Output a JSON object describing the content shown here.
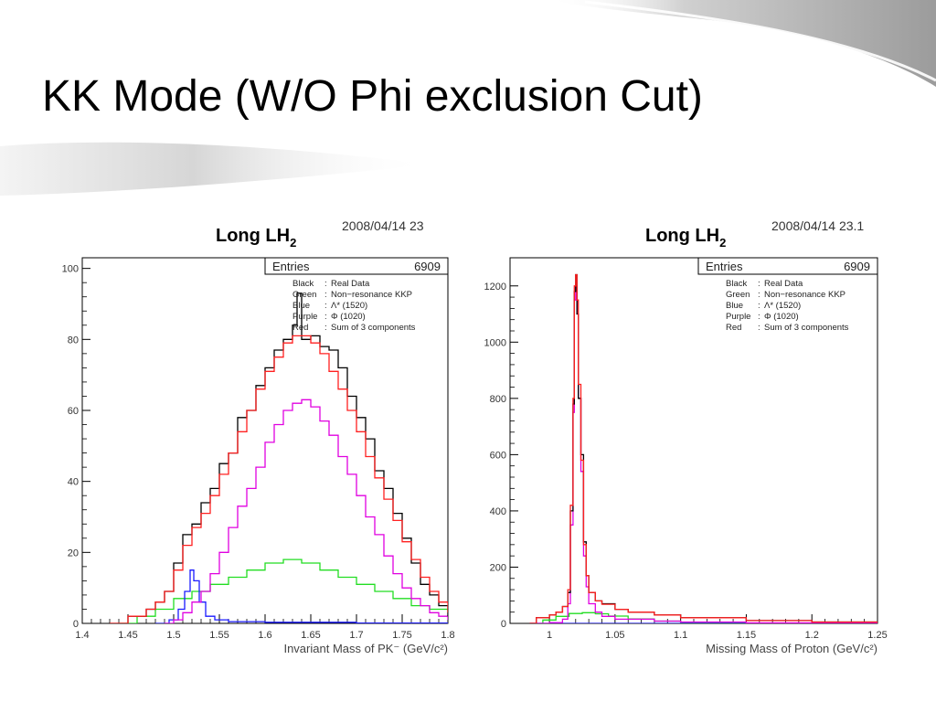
{
  "slide": {
    "title": "KK Mode (W/O Phi exclusion Cut)"
  },
  "legend": {
    "entries_label": "Entries",
    "items": [
      {
        "color_name": "Black",
        "desc": "Real Data",
        "color": "#000000"
      },
      {
        "color_name": "Green",
        "desc": "Non−resonance KKP",
        "color": "#22dd22"
      },
      {
        "color_name": "Blue",
        "desc": "Λ* (1520)",
        "color": "#1a1aff"
      },
      {
        "color_name": "Purple",
        "desc": "Φ (1020)",
        "color": "#e000e0"
      },
      {
        "color_name": "Red",
        "desc": "Sum of 3 components",
        "color": "#ff2020"
      }
    ]
  },
  "chart_data": [
    {
      "type": "line",
      "title": "Long LH",
      "title_sub": "2",
      "date": "2008/04/14   23",
      "entries": "6909",
      "xlabel": "Invariant Mass of PK⁻ (GeV/c²)",
      "ylabel": "",
      "xlim": [
        1.4,
        1.8
      ],
      "ylim": [
        0,
        103
      ],
      "x_ticks": [
        1.4,
        1.45,
        1.5,
        1.55,
        1.6,
        1.65,
        1.7,
        1.75,
        1.8
      ],
      "x_tick_labels": [
        "1.4",
        "1.45",
        "1.5",
        "1.55",
        "1.6",
        "1.65",
        "1.7",
        "1.75",
        "1.8"
      ],
      "y_ticks": [
        0,
        20,
        40,
        60,
        80,
        100
      ],
      "y_tick_labels": [
        "0",
        "20",
        "40",
        "60",
        "80",
        "100"
      ],
      "series": [
        {
          "name": "Real Data",
          "color": "#000000",
          "x": [
            1.43,
            1.45,
            1.47,
            1.48,
            1.49,
            1.5,
            1.51,
            1.52,
            1.53,
            1.54,
            1.55,
            1.56,
            1.57,
            1.58,
            1.59,
            1.6,
            1.61,
            1.62,
            1.63,
            1.635,
            1.64,
            1.65,
            1.66,
            1.67,
            1.68,
            1.69,
            1.7,
            1.71,
            1.72,
            1.73,
            1.74,
            1.75,
            1.76,
            1.77,
            1.78,
            1.79,
            1.8
          ],
          "y": [
            0,
            2,
            4,
            6,
            9,
            17,
            25,
            28,
            34,
            38,
            45,
            48,
            58,
            60,
            67,
            72,
            77,
            80,
            84,
            93,
            80,
            81,
            78,
            77,
            72,
            64,
            58,
            52,
            43,
            38,
            31,
            24,
            17,
            11,
            8,
            5,
            2
          ]
        },
        {
          "name": "Sum of 3 components",
          "color": "#ff2020",
          "x": [
            1.43,
            1.45,
            1.47,
            1.48,
            1.49,
            1.5,
            1.51,
            1.52,
            1.53,
            1.54,
            1.55,
            1.56,
            1.57,
            1.58,
            1.59,
            1.6,
            1.61,
            1.62,
            1.63,
            1.64,
            1.65,
            1.66,
            1.67,
            1.68,
            1.69,
            1.7,
            1.71,
            1.72,
            1.73,
            1.74,
            1.75,
            1.76,
            1.77,
            1.78,
            1.79,
            1.8
          ],
          "y": [
            0,
            2,
            4,
            6,
            9,
            15,
            22,
            27,
            31,
            36,
            42,
            48,
            54,
            60,
            66,
            71,
            75,
            79,
            81,
            81,
            79,
            76,
            71,
            66,
            60,
            54,
            47,
            41,
            35,
            29,
            23,
            18,
            13,
            9,
            6,
            3
          ]
        },
        {
          "name": "Φ (1020)",
          "color": "#e000e0",
          "x": [
            1.49,
            1.5,
            1.51,
            1.52,
            1.53,
            1.54,
            1.55,
            1.56,
            1.57,
            1.58,
            1.59,
            1.6,
            1.61,
            1.62,
            1.63,
            1.64,
            1.65,
            1.66,
            1.67,
            1.68,
            1.69,
            1.7,
            1.71,
            1.72,
            1.73,
            1.74,
            1.75,
            1.76,
            1.77,
            1.78,
            1.79,
            1.8
          ],
          "y": [
            0,
            1,
            3,
            6,
            9,
            14,
            20,
            27,
            33,
            38,
            44,
            51,
            56,
            60,
            62,
            63,
            61,
            57,
            53,
            47,
            42,
            36,
            30,
            25,
            19,
            14,
            10,
            7,
            5,
            3,
            2,
            1
          ]
        },
        {
          "name": "Non−resonance KKP",
          "color": "#22dd22",
          "x": [
            1.44,
            1.46,
            1.48,
            1.5,
            1.52,
            1.54,
            1.56,
            1.58,
            1.6,
            1.62,
            1.64,
            1.66,
            1.68,
            1.7,
            1.72,
            1.74,
            1.76,
            1.78,
            1.8
          ],
          "y": [
            0,
            2,
            4,
            7,
            9,
            11,
            13,
            15,
            17,
            18,
            17,
            15,
            13,
            11,
            9,
            7,
            5,
            4,
            3
          ]
        },
        {
          "name": "Λ* (1520)",
          "color": "#1a1aff",
          "x": [
            1.48,
            1.495,
            1.505,
            1.512,
            1.518,
            1.522,
            1.528,
            1.535,
            1.545,
            1.56,
            1.6,
            1.7,
            1.8
          ],
          "y": [
            0,
            1,
            4,
            9,
            15,
            12,
            6,
            2,
            1,
            0.5,
            0.3,
            0.1,
            0
          ]
        }
      ]
    },
    {
      "type": "line",
      "title": "Long LH",
      "title_sub": "2",
      "date": "2008/04/14   23.1",
      "entries": "6909",
      "xlabel": "Missing Mass of Proton (GeV/c²)",
      "ylabel": "",
      "xlim": [
        0.97,
        1.25
      ],
      "ylim": [
        0,
        1300
      ],
      "x_ticks": [
        1.0,
        1.05,
        1.1,
        1.15,
        1.2,
        1.25
      ],
      "x_tick_labels": [
        "1",
        "1.05",
        "1.1",
        "1.15",
        "1.2",
        "1.25"
      ],
      "y_ticks": [
        0,
        200,
        400,
        600,
        800,
        1000,
        1200
      ],
      "y_tick_labels": [
        "0",
        "200",
        "400",
        "600",
        "800",
        "1000",
        "1200"
      ],
      "series": [
        {
          "name": "Real Data",
          "color": "#000000",
          "x": [
            0.985,
            0.99,
            1.0,
            1.005,
            1.01,
            1.014,
            1.016,
            1.018,
            1.019,
            1.02,
            1.021,
            1.022,
            1.024,
            1.026,
            1.028,
            1.03,
            1.035,
            1.04,
            1.05,
            1.06,
            1.08,
            1.1,
            1.15,
            1.2,
            1.25
          ],
          "y": [
            0,
            20,
            30,
            40,
            60,
            110,
            400,
            780,
            1180,
            1240,
            1100,
            800,
            600,
            290,
            170,
            110,
            80,
            70,
            50,
            40,
            30,
            20,
            10,
            5,
            2
          ]
        },
        {
          "name": "Sum of 3 components",
          "color": "#ff2020",
          "x": [
            0.985,
            0.99,
            1.0,
            1.005,
            1.01,
            1.014,
            1.016,
            1.018,
            1.019,
            1.02,
            1.021,
            1.022,
            1.024,
            1.026,
            1.028,
            1.03,
            1.035,
            1.04,
            1.05,
            1.06,
            1.08,
            1.1,
            1.15,
            1.2,
            1.25
          ],
          "y": [
            0,
            20,
            30,
            40,
            60,
            120,
            420,
            800,
            1200,
            1240,
            1150,
            850,
            580,
            280,
            170,
            110,
            80,
            68,
            50,
            40,
            30,
            20,
            10,
            5,
            2
          ]
        },
        {
          "name": "Φ (1020)",
          "color": "#e000e0",
          "x": [
            0.985,
            1.0,
            1.01,
            1.014,
            1.016,
            1.018,
            1.019,
            1.02,
            1.021,
            1.022,
            1.024,
            1.026,
            1.028,
            1.03,
            1.035,
            1.04,
            1.05,
            1.08,
            1.1,
            1.15,
            1.25
          ],
          "y": [
            0,
            3,
            15,
            70,
            350,
            750,
            1150,
            1200,
            1100,
            800,
            540,
            240,
            130,
            70,
            40,
            25,
            15,
            8,
            5,
            2,
            0
          ]
        },
        {
          "name": "Non−resonance KKP",
          "color": "#22dd22",
          "x": [
            0.985,
            0.995,
            1.005,
            1.015,
            1.025,
            1.035,
            1.045,
            1.06,
            1.08,
            1.1,
            1.15,
            1.25
          ],
          "y": [
            0,
            12,
            25,
            35,
            38,
            34,
            26,
            16,
            8,
            4,
            1,
            0
          ]
        },
        {
          "name": "Λ* (1520)",
          "color": "#1a1aff",
          "x": [
            0.985,
            1.25
          ],
          "y": [
            0,
            0
          ]
        }
      ]
    }
  ]
}
